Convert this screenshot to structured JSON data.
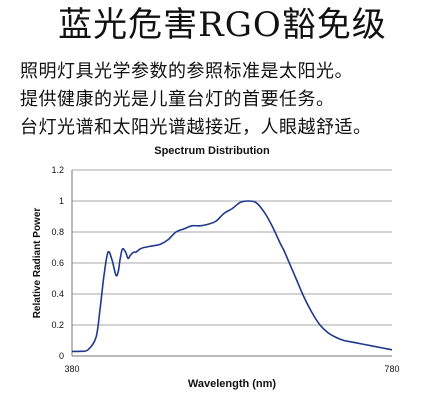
{
  "header": {
    "title": "蓝光危害RGO豁免级",
    "lines": [
      "照明灯具光学参数的参照标准是太阳光。",
      "提供健康的光是儿童台灯的首要任务。",
      "台灯光谱和太阳光谱越接近，人眼越舒适。"
    ]
  },
  "chart_data": {
    "type": "line",
    "title": "Spectrum Distribution",
    "xlabel": "Wavelength (nm)",
    "ylabel": "Relative Radiant Power",
    "xlim": [
      380,
      780
    ],
    "ylim": [
      0,
      1.2
    ],
    "x_ticks": [
      "380",
      "780"
    ],
    "y_ticks": [
      "0",
      "0.2",
      "0.4",
      "0.6",
      "0.8",
      "1",
      "1.2"
    ],
    "grid": true,
    "color": "#1f3a8c",
    "series": [
      {
        "name": "",
        "x": [
          380,
          390,
          400,
          410,
          415,
          420,
          425,
          430,
          435,
          438,
          440,
          443,
          447,
          450,
          453,
          457,
          460,
          465,
          470,
          480,
          490,
          500,
          510,
          520,
          530,
          540,
          550,
          560,
          570,
          580,
          590,
          600,
          610,
          620,
          630,
          640,
          645,
          650,
          660,
          670,
          680,
          690,
          700,
          710,
          720,
          730,
          740,
          750,
          760,
          770,
          780
        ],
        "y": [
          0.03,
          0.03,
          0.04,
          0.12,
          0.3,
          0.52,
          0.67,
          0.62,
          0.52,
          0.55,
          0.62,
          0.69,
          0.67,
          0.63,
          0.65,
          0.67,
          0.67,
          0.69,
          0.7,
          0.71,
          0.72,
          0.75,
          0.8,
          0.82,
          0.84,
          0.84,
          0.85,
          0.87,
          0.92,
          0.95,
          0.99,
          1.0,
          0.99,
          0.93,
          0.84,
          0.73,
          0.68,
          0.62,
          0.5,
          0.38,
          0.28,
          0.2,
          0.15,
          0.12,
          0.1,
          0.09,
          0.08,
          0.07,
          0.06,
          0.05,
          0.04
        ]
      }
    ]
  }
}
